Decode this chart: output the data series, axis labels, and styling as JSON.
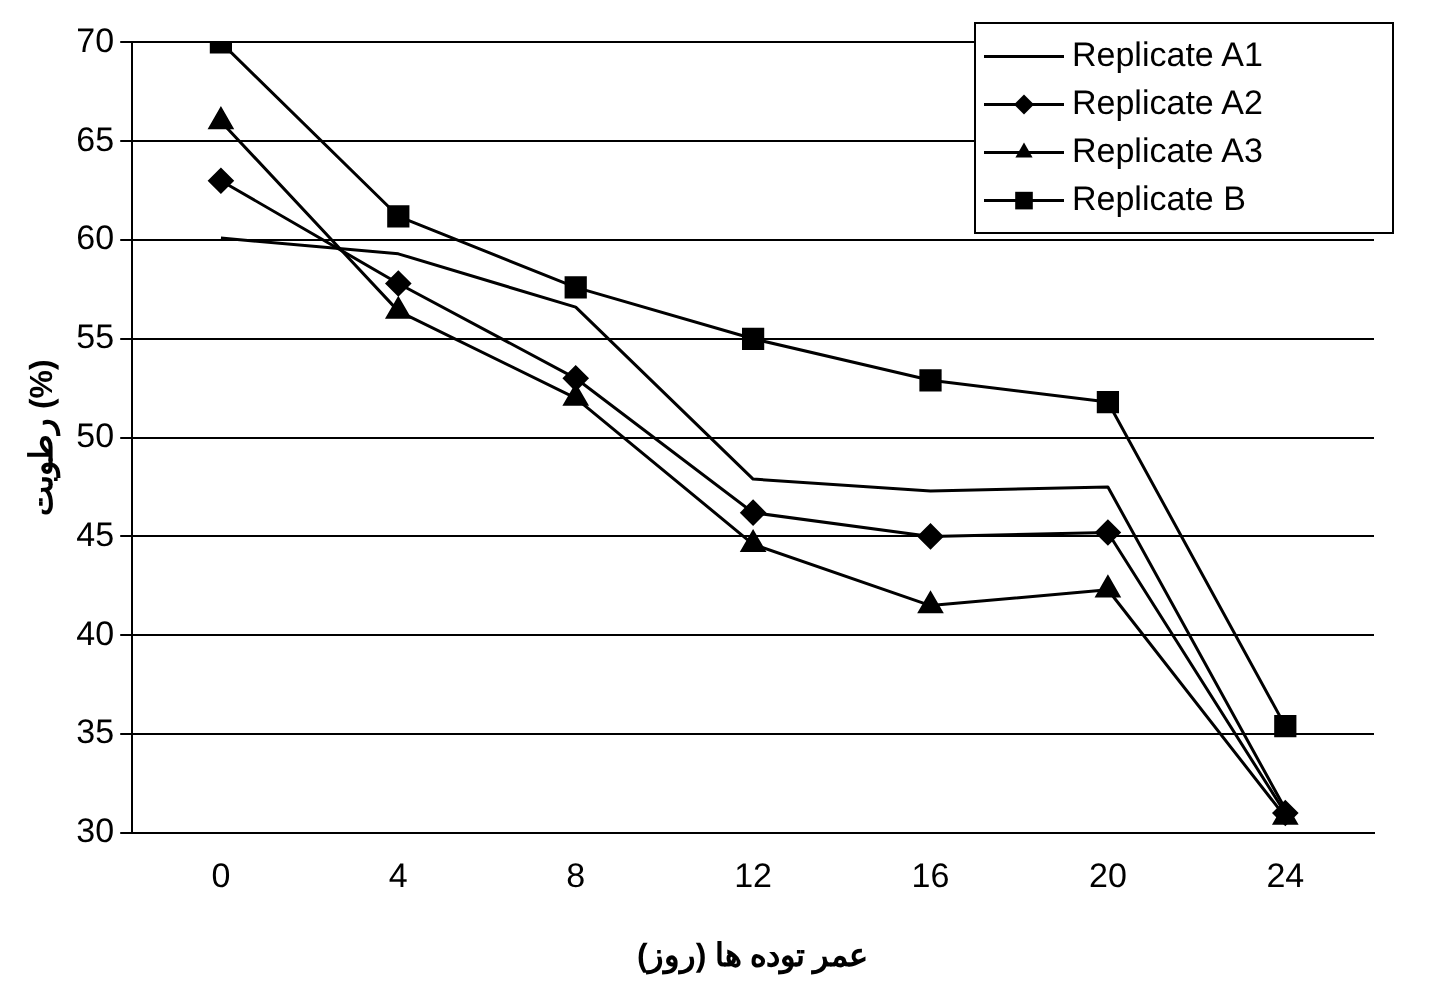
{
  "chart_data": {
    "type": "line",
    "xlabel": "عمر توده ها (روز)",
    "ylabel": "رطوبت (%)",
    "categories": [
      "0",
      "4",
      "8",
      "12",
      "16",
      "20",
      "24"
    ],
    "series": [
      {
        "name": "Replicate A1",
        "color": "#000000",
        "marker": "none",
        "values": [
          60.1,
          59.3,
          56.6,
          47.9,
          47.3,
          47.5,
          31.2
        ]
      },
      {
        "name": "Replicate A2",
        "color": "#000000",
        "marker": "diamond",
        "values": [
          63,
          57.8,
          53,
          46.2,
          45,
          45.2,
          31
        ]
      },
      {
        "name": "Replicate A3",
        "color": "#000000",
        "marker": "triangle",
        "values": [
          66,
          56.4,
          52,
          44.6,
          41.5,
          42.3,
          30.8
        ]
      },
      {
        "name": "Replicate B",
        "color": "#000000",
        "marker": "square",
        "values": [
          70,
          61.2,
          57.6,
          55,
          52.9,
          51.8,
          35.4
        ]
      }
    ],
    "ylim": [
      30,
      70
    ],
    "yticks": [
      30,
      35,
      40,
      45,
      50,
      55,
      60,
      65,
      70
    ],
    "grid": "y",
    "legend": "top right",
    "line_style": "solid"
  }
}
